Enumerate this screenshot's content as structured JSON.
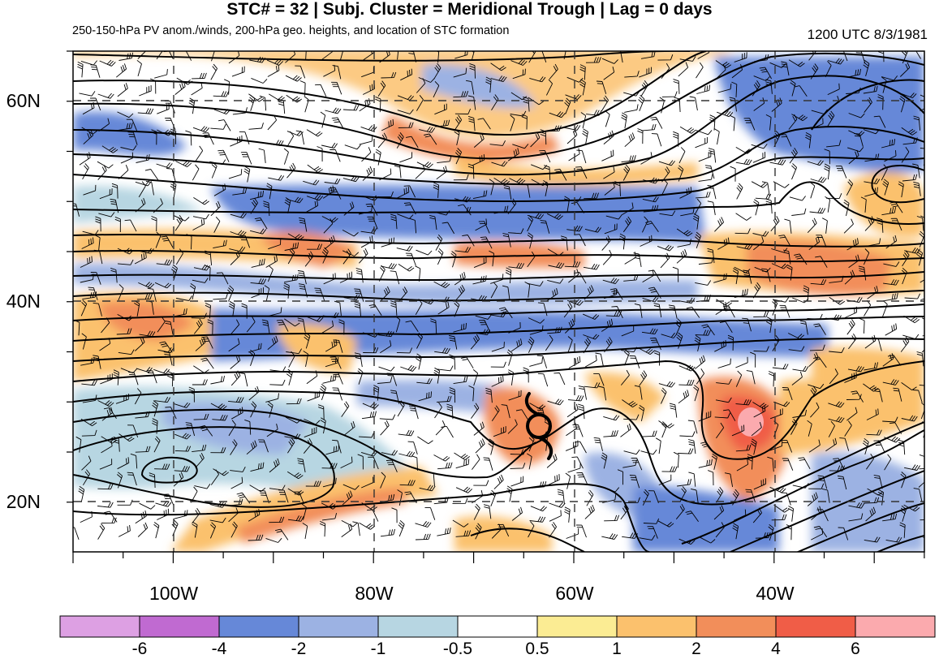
{
  "title": "STC# = 32 | Subj. Cluster = Meridional Trough | Lag = 0 days",
  "subtitle": "250-150-hPa PV anom./winds, 200-hPa geo. heights, and location of STC formation",
  "timestamp": "1200 UTC  8/3/1981",
  "lat_labels": [
    "60N",
    "40N",
    "20N"
  ],
  "lon_labels": [
    "100W",
    "80W",
    "60W",
    "40W"
  ],
  "colorbar": {
    "colors": [
      "#dda0e3",
      "#c06ad1",
      "#6688d8",
      "#9cb2e3",
      "#b7d6e2",
      "#ffffff",
      "#fbec93",
      "#fbc16d",
      "#f28e5a",
      "#f05d47",
      "#fbaaae"
    ],
    "labels": [
      "-6",
      "-4",
      "-2",
      "-1",
      "-0.5",
      "0.5",
      "1",
      "2",
      "4",
      "6"
    ]
  },
  "map_colors": {
    "land_bg": "#ffffff",
    "contour": "#000000",
    "grid": "#333333"
  },
  "stc_marker": {
    "lon": -64,
    "lat": 28,
    "symbol": "tropical-cyclone-icon"
  }
}
